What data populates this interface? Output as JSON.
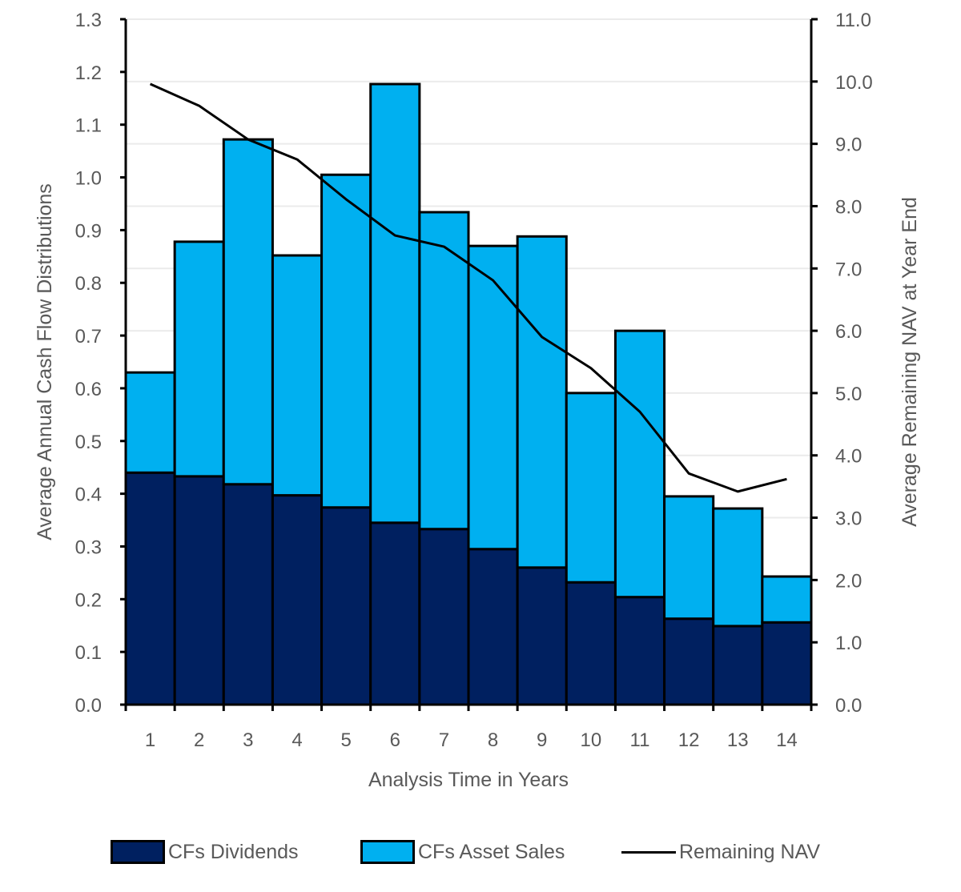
{
  "chart_data": {
    "type": "bar",
    "stacked": true,
    "title": "",
    "xlabel": "Analysis Time in Years",
    "ylabel": "Average Annual Cash Flow Distributions",
    "y2label": "Average Remaining NAV at Year End",
    "categories": [
      "1",
      "2",
      "3",
      "4",
      "5",
      "6",
      "7",
      "8",
      "9",
      "10",
      "11",
      "12",
      "13",
      "14"
    ],
    "ylim": [
      0,
      1.3
    ],
    "yticks": [
      "0.0",
      "0.1",
      "0.2",
      "0.3",
      "0.4",
      "0.5",
      "0.6",
      "0.7",
      "0.8",
      "0.9",
      "1.0",
      "1.1",
      "1.2",
      "1.3"
    ],
    "y2lim": [
      0,
      11
    ],
    "y2ticks": [
      "0.0",
      "1.0",
      "2.0",
      "3.0",
      "4.0",
      "5.0",
      "6.0",
      "7.0",
      "8.0",
      "9.0",
      "10.0",
      "11.0"
    ],
    "grid": true,
    "legend_position": "bottom",
    "series": [
      {
        "name": "CFs Dividends",
        "type": "bar",
        "axis": "left",
        "color": "#002060",
        "values": [
          0.44,
          0.433,
          0.418,
          0.397,
          0.374,
          0.345,
          0.333,
          0.295,
          0.26,
          0.232,
          0.204,
          0.163,
          0.149,
          0.156
        ]
      },
      {
        "name": "CFs Asset Sales",
        "type": "bar",
        "axis": "left",
        "color": "#00B0F0",
        "values": [
          0.19,
          0.445,
          0.654,
          0.455,
          0.631,
          0.832,
          0.601,
          0.575,
          0.628,
          0.359,
          0.505,
          0.232,
          0.223,
          0.087
        ]
      },
      {
        "name": "Remaining NAV",
        "type": "line",
        "axis": "right",
        "color": "#000000",
        "values": [
          9.96,
          9.61,
          9.07,
          8.75,
          8.11,
          7.53,
          7.35,
          6.81,
          5.9,
          5.4,
          4.7,
          3.71,
          3.42,
          3.62
        ]
      }
    ]
  }
}
